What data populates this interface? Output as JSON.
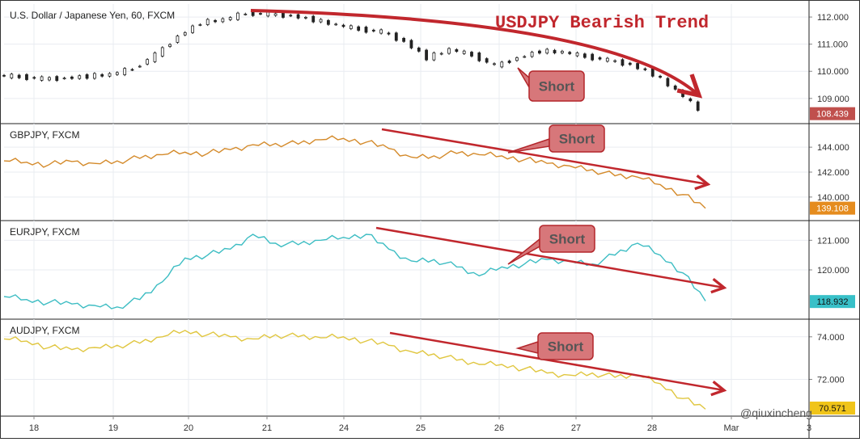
{
  "colors": {
    "usdjpy": "#222222",
    "gbpjpy": "#d48a2a",
    "eurjpy": "#3dbdc3",
    "audjpy": "#e0c63f",
    "trend_arrow": "#c1272d",
    "short_box_fill": "#d7777a",
    "short_box_stroke": "#b3262b",
    "usdjpy_badge": "#c0504d",
    "gbpjpy_badge": "#e58c1e",
    "eurjpy_badge": "#38c0c8",
    "audjpy_badge": "#f0c419",
    "grid": "#e9ecf1"
  },
  "annotations": {
    "trend_title": "USDJPY Bearish Trend",
    "short_label": "Short",
    "watermark": "@qiuxincheng"
  },
  "chart_data": [
    {
      "type": "candlestick",
      "title": "U.S. Dollar / Japanese Yen, 60, FXCM",
      "y_ticks": [
        "112.000",
        "111.000",
        "110.000",
        "109.000"
      ],
      "ylim": [
        108.25,
        112.3
      ],
      "last_price": "108.439",
      "x_ticks": [
        "18",
        "19",
        "20",
        "21",
        "24",
        "25",
        "26",
        "27",
        "28",
        "Mar",
        "3"
      ],
      "x": [
        0,
        3,
        6,
        9,
        12,
        15,
        18,
        21,
        24,
        27,
        30,
        33,
        36,
        39,
        42,
        45,
        48,
        51,
        54,
        57,
        60,
        63,
        66,
        69,
        72,
        75,
        78,
        81,
        84,
        87,
        90,
        93
      ],
      "y": [
        109.85,
        109.8,
        109.72,
        109.75,
        109.82,
        109.88,
        110.1,
        110.6,
        111.3,
        111.8,
        111.9,
        112.15,
        112.1,
        112.05,
        111.9,
        111.7,
        111.55,
        111.45,
        111.1,
        110.5,
        110.8,
        110.6,
        110.2,
        110.5,
        110.75,
        110.7,
        110.55,
        110.4,
        110.25,
        109.9,
        109.3,
        108.6
      ],
      "grid": true,
      "legend": "none"
    },
    {
      "type": "line",
      "title": "GBPJPY, FXCM",
      "y_ticks": [
        "144.000",
        "142.000",
        "140.000"
      ],
      "ylim": [
        138.5,
        145.5
      ],
      "last_price": "139.108",
      "x": [
        0,
        3,
        6,
        9,
        12,
        15,
        18,
        21,
        24,
        27,
        30,
        33,
        36,
        39,
        42,
        45,
        48,
        51,
        54,
        57,
        60,
        63,
        66,
        69,
        72,
        75,
        78,
        81,
        84,
        87,
        90,
        93
      ],
      "y": [
        142.9,
        142.8,
        142.6,
        142.85,
        142.7,
        142.9,
        143.1,
        143.4,
        143.6,
        143.5,
        143.8,
        144.2,
        144.3,
        144.25,
        144.6,
        144.7,
        144.4,
        143.9,
        143.2,
        143.3,
        143.5,
        143.4,
        143.3,
        143.0,
        142.7,
        142.5,
        142.2,
        141.7,
        141.6,
        141.0,
        140.2,
        139.1
      ],
      "grid": true,
      "legend": "none"
    },
    {
      "type": "line",
      "title": "EURJPY, FXCM",
      "y_ticks": [
        "121.000",
        "120.000"
      ],
      "ylim": [
        118.5,
        121.5
      ],
      "last_price": "118.932",
      "x": [
        0,
        3,
        6,
        9,
        12,
        15,
        18,
        21,
        24,
        27,
        30,
        33,
        36,
        39,
        42,
        45,
        48,
        51,
        54,
        57,
        60,
        63,
        66,
        69,
        72,
        75,
        78,
        81,
        84,
        87,
        90,
        93
      ],
      "y": [
        119.1,
        119.0,
        118.9,
        118.85,
        118.8,
        118.75,
        119.0,
        119.6,
        120.4,
        120.5,
        120.7,
        121.2,
        120.9,
        120.85,
        121.0,
        121.1,
        121.2,
        120.7,
        120.3,
        120.35,
        120.1,
        119.8,
        120.1,
        120.2,
        120.35,
        120.3,
        120.2,
        120.5,
        120.9,
        120.5,
        119.9,
        118.95
      ],
      "grid": true,
      "legend": "none"
    },
    {
      "type": "line",
      "title": "AUDJPY, FXCM",
      "y_ticks": [
        "74.000",
        "72.000"
      ],
      "ylim": [
        70.5,
        74.6
      ],
      "last_price": "70.571",
      "x": [
        0,
        3,
        6,
        9,
        12,
        15,
        18,
        21,
        24,
        27,
        30,
        33,
        36,
        39,
        42,
        45,
        48,
        51,
        54,
        57,
        60,
        63,
        66,
        69,
        72,
        75,
        78,
        81,
        84,
        87,
        90,
        93
      ],
      "y": [
        73.9,
        73.8,
        73.5,
        73.4,
        73.5,
        73.6,
        73.7,
        74.0,
        74.3,
        74.1,
        74.0,
        73.9,
        74.1,
        74.0,
        73.95,
        74.0,
        73.8,
        73.6,
        73.3,
        73.2,
        72.9,
        72.7,
        72.7,
        72.5,
        72.3,
        72.2,
        72.3,
        72.1,
        72.2,
        71.8,
        71.1,
        70.6
      ],
      "grid": true,
      "legend": "none"
    }
  ]
}
